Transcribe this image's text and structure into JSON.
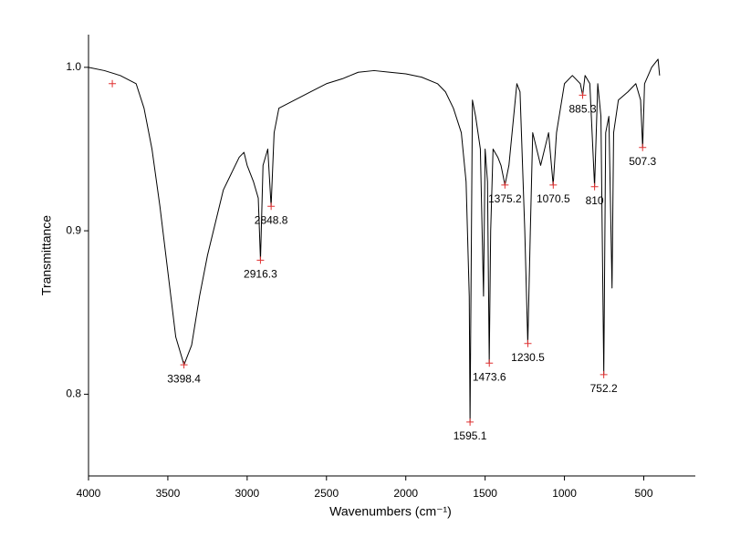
{
  "chart_data": {
    "type": "line",
    "x_label": "Wavenumbers (cm⁻¹)",
    "y_label": "Transmittance",
    "xlim": [
      4000,
      175
    ],
    "ylim": [
      0.75,
      1.02
    ],
    "xticks": [
      4000,
      3500,
      3000,
      2500,
      2000,
      1500,
      1000,
      500
    ],
    "yticks": [
      0.8,
      0.9,
      {
        "value": 1,
        "label": "1.0"
      }
    ],
    "reverse_x": true,
    "series": [
      {
        "color": "#000000",
        "x": [
          4000,
          3900,
          3800,
          3700,
          3650,
          3600,
          3550,
          3500,
          3450,
          3398,
          3350,
          3300,
          3250,
          3200,
          3150,
          3100,
          3050,
          3020,
          3000,
          2960,
          2930,
          2916,
          2900,
          2870,
          2849,
          2830,
          2800,
          2700,
          2600,
          2500,
          2400,
          2300,
          2200,
          2100,
          2000,
          1900,
          1800,
          1750,
          1700,
          1650,
          1620,
          1600,
          1595,
          1590,
          1580,
          1560,
          1530,
          1510,
          1500,
          1485,
          1474,
          1465,
          1450,
          1420,
          1400,
          1375,
          1350,
          1300,
          1280,
          1250,
          1231,
          1215,
          1200,
          1150,
          1100,
          1071,
          1050,
          1000,
          950,
          900,
          885,
          870,
          840,
          810,
          790,
          770,
          752,
          740,
          720,
          700,
          690,
          660,
          600,
          550,
          520,
          507,
          495,
          450,
          410,
          400
        ],
        "values": [
          1.0,
          0.998,
          0.995,
          0.99,
          0.975,
          0.95,
          0.915,
          0.875,
          0.835,
          0.818,
          0.83,
          0.86,
          0.885,
          0.905,
          0.925,
          0.935,
          0.945,
          0.948,
          0.94,
          0.93,
          0.92,
          0.882,
          0.94,
          0.95,
          0.915,
          0.96,
          0.975,
          0.98,
          0.985,
          0.99,
          0.993,
          0.997,
          0.998,
          0.997,
          0.996,
          0.994,
          0.99,
          0.985,
          0.975,
          0.96,
          0.93,
          0.86,
          0.783,
          0.85,
          0.98,
          0.97,
          0.95,
          0.86,
          0.95,
          0.93,
          0.819,
          0.9,
          0.95,
          0.945,
          0.94,
          0.928,
          0.94,
          0.99,
          0.985,
          0.9,
          0.831,
          0.9,
          0.96,
          0.94,
          0.96,
          0.928,
          0.96,
          0.99,
          0.995,
          0.99,
          0.983,
          0.995,
          0.99,
          0.927,
          0.99,
          0.97,
          0.812,
          0.96,
          0.97,
          0.865,
          0.96,
          0.98,
          0.985,
          0.99,
          0.98,
          0.951,
          0.99,
          1.0,
          1.005,
          0.995
        ]
      }
    ],
    "marker_color": "#e03030",
    "markers": [
      {
        "x": 3850,
        "y": 0.99
      }
    ],
    "peaks": [
      {
        "x": 3398.4,
        "y": 0.818
      },
      {
        "x": 2916.3,
        "y": 0.882
      },
      {
        "x": 2848.8,
        "y": 0.915
      },
      {
        "x": 1595.1,
        "y": 0.783
      },
      {
        "x": 1473.6,
        "y": 0.819
      },
      {
        "x": 1375.2,
        "y": 0.928
      },
      {
        "x": 1230.5,
        "y": 0.831
      },
      {
        "x": 1070.5,
        "y": 0.928
      },
      {
        "x": 885.3,
        "y": 0.983
      },
      {
        "x": 810,
        "y": 0.927
      },
      {
        "x": 752.2,
        "y": 0.812
      },
      {
        "x": 507.3,
        "y": 0.951
      }
    ]
  }
}
